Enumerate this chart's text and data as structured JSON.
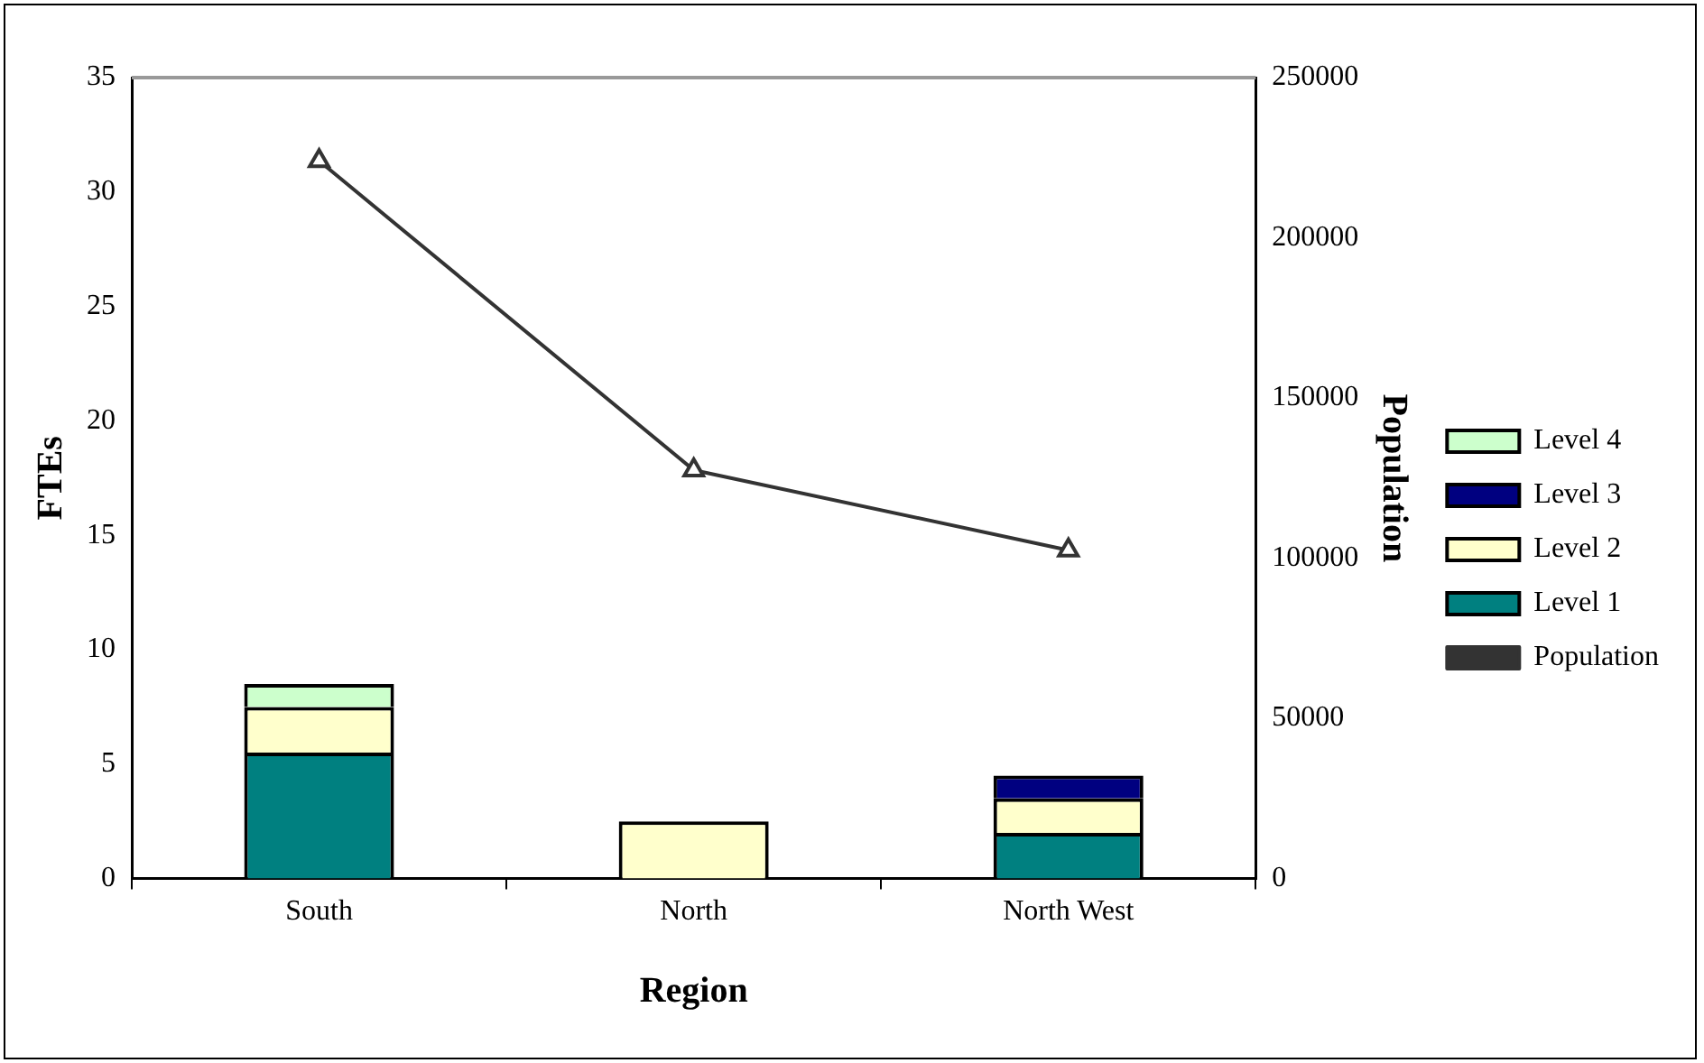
{
  "chart_data": {
    "type": "bar",
    "stacked": true,
    "xlabel": "Region",
    "ylabel": "FTEs",
    "y2label": "Population",
    "categories": [
      "South",
      "North",
      "North West"
    ],
    "series": [
      {
        "name": "Level 1",
        "color": "#008080",
        "values": [
          5.5,
          0,
          2
        ]
      },
      {
        "name": "Level 2",
        "color": "#ffffcc",
        "values": [
          2,
          2.5,
          1.5
        ]
      },
      {
        "name": "Level 3",
        "color": "#000080",
        "values": [
          0,
          0,
          1
        ]
      },
      {
        "name": "Level 4",
        "color": "#ccffcc",
        "values": [
          1,
          0,
          0
        ]
      },
      {
        "name": "Population",
        "type": "line",
        "axis": "y2",
        "color": "#333333",
        "values": [
          224000,
          127500,
          102500
        ]
      }
    ],
    "ylim": [
      0,
      35
    ],
    "yticks": [
      0,
      5,
      10,
      15,
      20,
      25,
      30,
      35
    ],
    "y2lim": [
      0,
      250000
    ],
    "y2ticks": [
      0,
      50000,
      100000,
      150000,
      200000,
      250000
    ],
    "grid": false,
    "legend": "right",
    "marker": "triangle"
  }
}
